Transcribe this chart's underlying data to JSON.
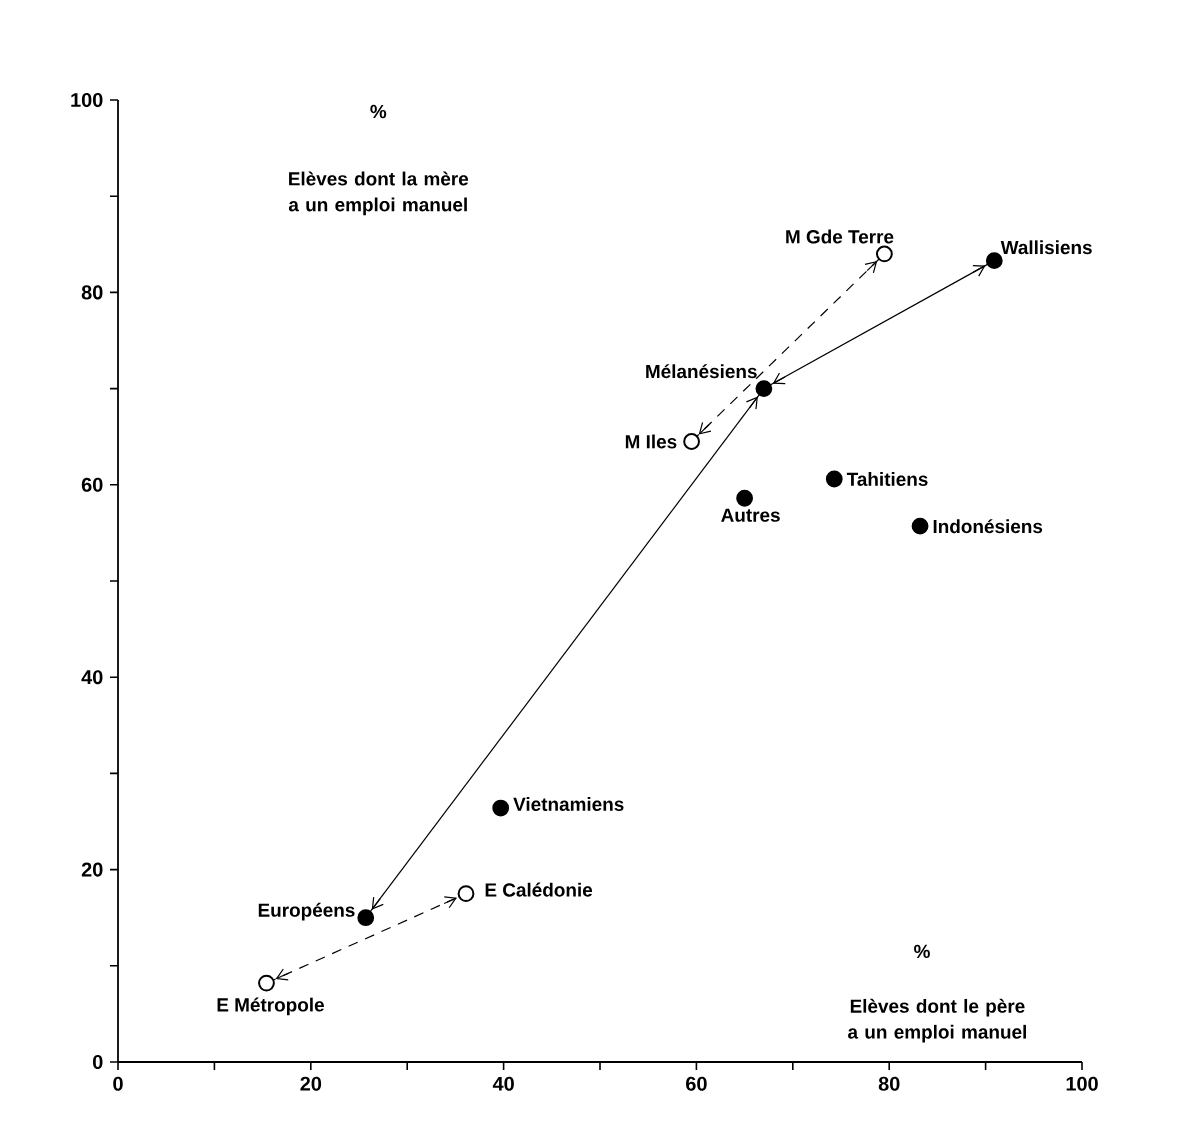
{
  "chart_data": {
    "type": "scatter",
    "xlabel": "Elèves dont le père a un emploi manuel",
    "ylabel": "Elèves dont la mère a un emploi manuel",
    "xlim": [
      0,
      100
    ],
    "ylim": [
      0,
      100
    ],
    "xticks": [
      0,
      {
        "value": 10,
        "label": null
      },
      20,
      {
        "value": 30,
        "label": null
      },
      40,
      {
        "value": 50,
        "label": null
      },
      60,
      {
        "value": 70,
        "label": null
      },
      80,
      {
        "value": 90,
        "label": null
      },
      100
    ],
    "yticks": [
      0,
      {
        "value": 10,
        "label": null
      },
      20,
      {
        "value": 30,
        "label": null
      },
      40,
      {
        "value": 50,
        "label": null
      },
      60,
      {
        "value": 70,
        "label": null
      },
      80,
      {
        "value": 90,
        "label": null
      },
      100
    ],
    "series": [
      {
        "x": [
          25.7,
          67,
          90.9,
          65,
          74.3,
          83.2,
          39.7
        ],
        "values": [
          15,
          70,
          83.3,
          58.6,
          60.6,
          55.7,
          26.4
        ],
        "color": "#000000"
      },
      {
        "x": [
          15.4,
          36.1,
          59.5,
          79.5
        ],
        "values": [
          8.2,
          17.5,
          64.5,
          84
        ],
        "color": "#ffffff"
      },
      {
        "type": "line",
        "x": [
          25.7,
          67
        ],
        "values": [
          15,
          70
        ],
        "color": "#000000",
        "line_style": "solid"
      },
      {
        "type": "line",
        "x": [
          67,
          90.9
        ],
        "values": [
          70,
          83.3
        ],
        "color": "#000000",
        "line_style": "solid"
      },
      {
        "type": "line",
        "x": [
          15.4,
          36.1
        ],
        "values": [
          8.2,
          17.5
        ],
        "color": "#000000",
        "line_style": "dashed"
      },
      {
        "type": "line",
        "x": [
          59.5,
          79.5
        ],
        "values": [
          64.5,
          84
        ],
        "color": "#000000",
        "line_style": "dashed"
      }
    ],
    "annotations": [
      {
        "text": "M Gde Terre",
        "x": 79.5,
        "y": 84
      },
      {
        "text": "Wallisiens",
        "x": 90.9,
        "y": 83.3
      },
      {
        "text": "Mélanésiens",
        "x": 67,
        "y": 70
      },
      {
        "text": "M Iles",
        "x": 59.5,
        "y": 64.5
      },
      {
        "text": "Autres",
        "x": 65,
        "y": 58.6
      },
      {
        "text": "Tahitiens",
        "x": 74.3,
        "y": 60.6
      },
      {
        "text": "Indonésiens",
        "x": 83.2,
        "y": 55.7
      },
      {
        "text": "Vietnamiens",
        "x": 39.7,
        "y": 26.4
      },
      {
        "text": "Européens",
        "x": 25.7,
        "y": 15
      },
      {
        "text": "E Calédonie",
        "x": 36.1,
        "y": 17.5
      },
      {
        "text": "E Métropole",
        "x": 15.4,
        "y": 8.2
      },
      "%",
      "%"
    ]
  }
}
